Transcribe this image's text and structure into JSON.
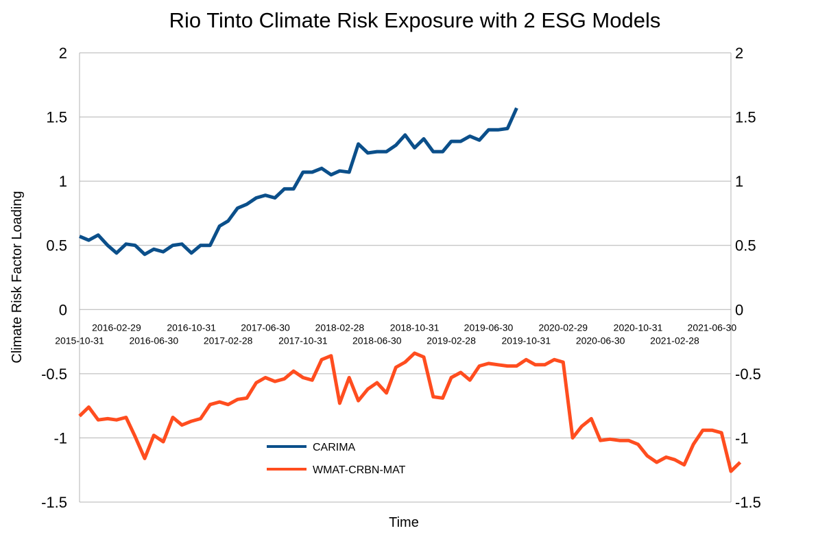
{
  "chart_data": {
    "type": "line",
    "title": "Rio Tinto Climate Risk Exposure with 2 ESG Models",
    "xlabel": "Time",
    "ylabel": "Climate Risk Factor Loading",
    "ylim": [
      -1.5,
      2
    ],
    "yticks": [
      "2",
      "1.5",
      "1",
      "0.5",
      "0",
      "-0.5",
      "-1",
      "-1.5"
    ],
    "ytick_values": [
      2,
      1.5,
      1,
      0.5,
      0,
      -0.5,
      -1,
      -1.5
    ],
    "grid": true,
    "legend_position": "bottom-center",
    "x_start": "2015-10-31",
    "x_end": "2021-08-31",
    "x_tick_labels": [
      "2015-10-31",
      "2016-02-29",
      "2016-06-30",
      "2016-10-31",
      "2017-02-28",
      "2017-06-30",
      "2017-10-31",
      "2018-02-28",
      "2018-06-30",
      "2018-10-31",
      "2019-02-28",
      "2019-06-30",
      "2019-10-31",
      "2020-02-29",
      "2020-06-30",
      "2020-10-31",
      "2021-02-28",
      "2021-06-30"
    ],
    "series": [
      {
        "name": "CARIMA",
        "color": "#0b4f8a",
        "values": [
          0.57,
          0.54,
          0.58,
          0.5,
          0.44,
          0.51,
          0.5,
          0.43,
          0.47,
          0.45,
          0.5,
          0.51,
          0.44,
          0.5,
          0.5,
          0.65,
          0.69,
          0.79,
          0.82,
          0.87,
          0.89,
          0.87,
          0.94,
          0.94,
          1.07,
          1.07,
          1.1,
          1.05,
          1.08,
          1.07,
          1.29,
          1.22,
          1.23,
          1.23,
          1.28,
          1.36,
          1.26,
          1.33,
          1.23,
          1.23,
          1.31,
          1.31,
          1.35,
          1.32,
          1.4,
          1.4,
          1.41,
          1.57
        ]
      },
      {
        "name": "WMAT-CRBN-MAT",
        "color": "#ff4d1f",
        "values": [
          -0.83,
          -0.76,
          -0.86,
          -0.85,
          -0.86,
          -0.84,
          -0.99,
          -1.16,
          -0.98,
          -1.03,
          -0.84,
          -0.9,
          -0.87,
          -0.85,
          -0.74,
          -0.72,
          -0.74,
          -0.7,
          -0.69,
          -0.57,
          -0.53,
          -0.56,
          -0.54,
          -0.48,
          -0.53,
          -0.55,
          -0.39,
          -0.36,
          -0.73,
          -0.53,
          -0.71,
          -0.62,
          -0.57,
          -0.65,
          -0.45,
          -0.41,
          -0.34,
          -0.37,
          -0.68,
          -0.69,
          -0.53,
          -0.49,
          -0.55,
          -0.44,
          -0.42,
          -0.43,
          -0.44,
          -0.44,
          -0.39,
          -0.43,
          -0.43,
          -0.39,
          -0.41,
          -1.0,
          -0.91,
          -0.85,
          -1.02,
          -1.01,
          -1.02,
          -1.02,
          -1.05,
          -1.14,
          -1.19,
          -1.15,
          -1.17,
          -1.21,
          -1.05,
          -0.94,
          -0.94,
          -0.96,
          -1.26,
          -1.19
        ]
      }
    ]
  }
}
